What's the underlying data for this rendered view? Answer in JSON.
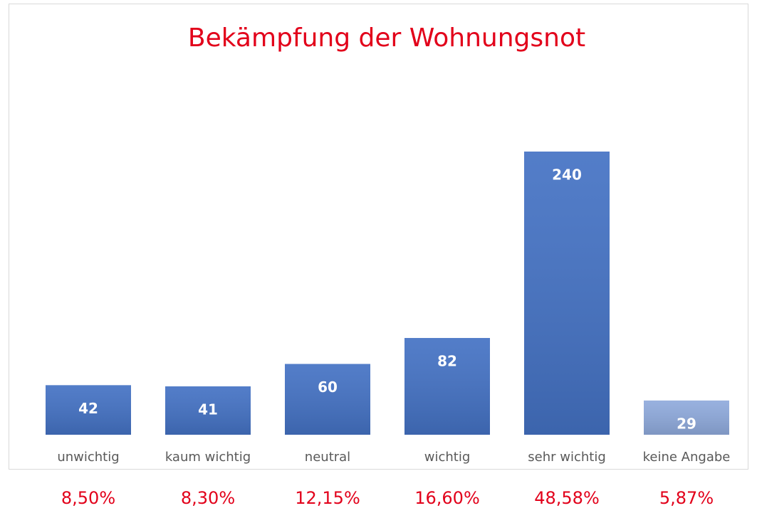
{
  "chart_data": {
    "type": "bar",
    "title": "Bekämpfung der Wohnungsnot",
    "categories": [
      "unwichtig",
      "kaum wichtig",
      "neutral",
      "wichtig",
      "sehr wichtig",
      "keine Angabe"
    ],
    "values": [
      42,
      41,
      60,
      82,
      240,
      29
    ],
    "colors": [
      "#4472c4",
      "#4472c4",
      "#4472c4",
      "#4472c4",
      "#4472c4",
      "#8faadc"
    ],
    "annotations": [
      "8,50%",
      "8,30%",
      "12,15%",
      "16,60%",
      "48,58%",
      "5,87%"
    ]
  }
}
